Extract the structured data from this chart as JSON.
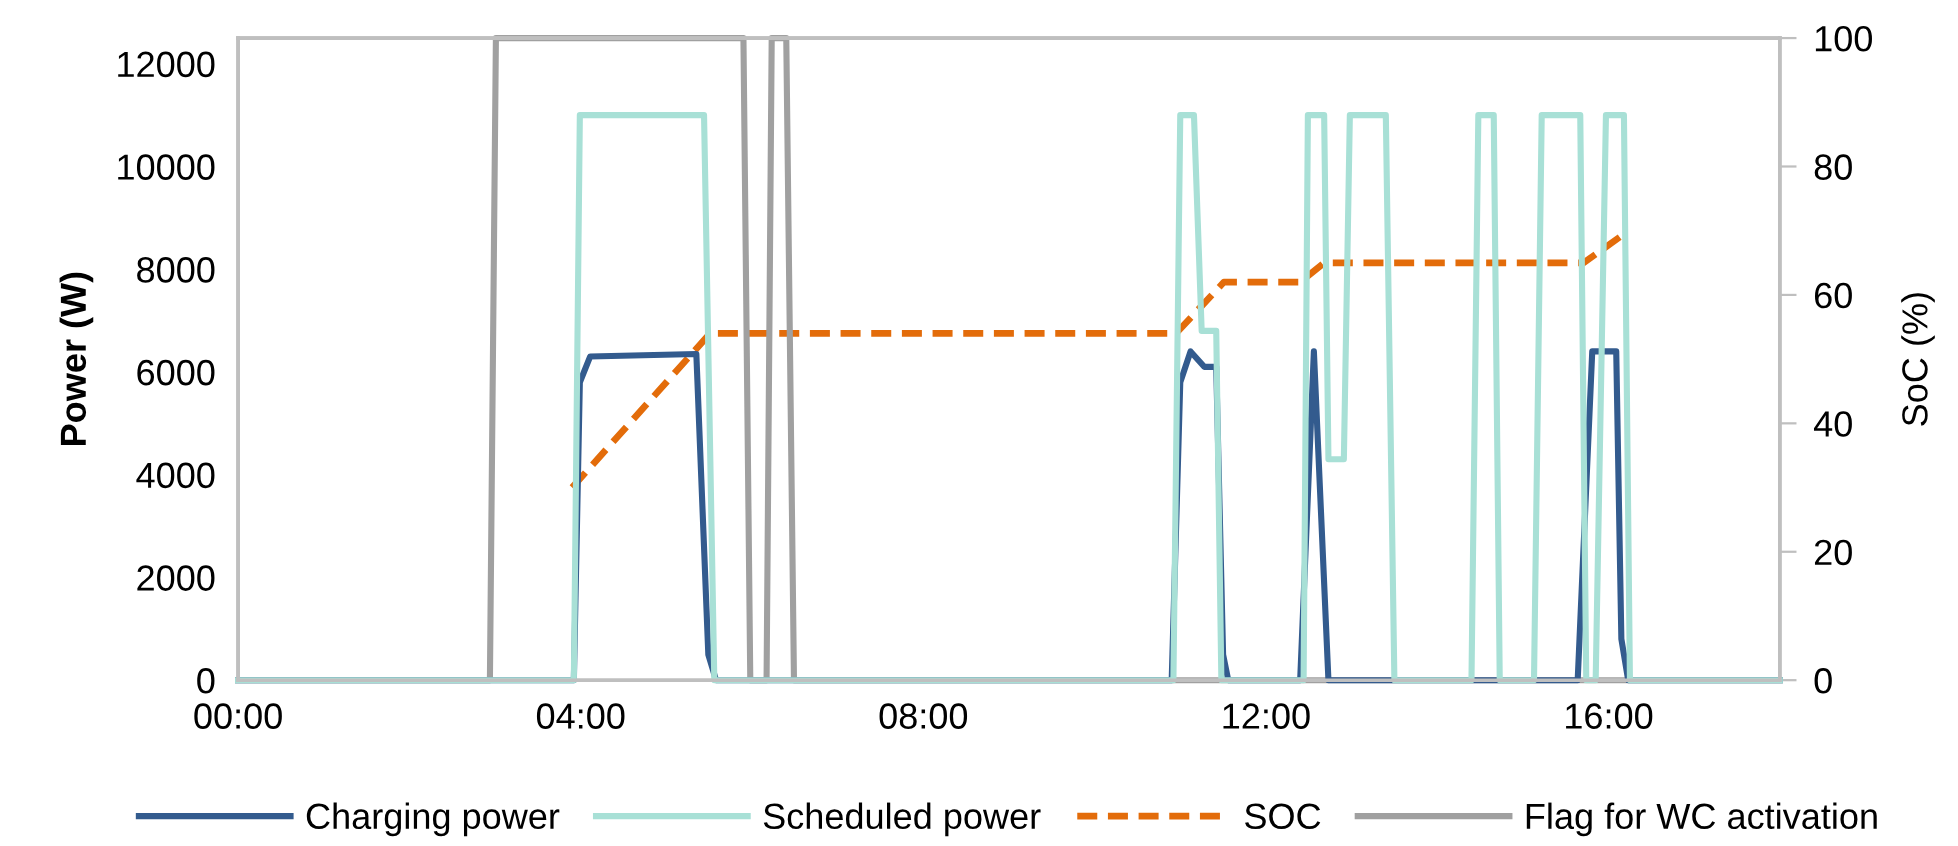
{
  "chart_data": {
    "type": "line",
    "ylabel": "Power (W)",
    "y2label": "SoC (%)",
    "xlim": [
      0,
      18
    ],
    "xticks": [
      {
        "value": 0,
        "label": "00:00"
      },
      {
        "value": 4,
        "label": "04:00"
      },
      {
        "value": 8,
        "label": "08:00"
      },
      {
        "value": 12,
        "label": "12:00"
      },
      {
        "value": 16,
        "label": "16:00"
      }
    ],
    "ylim": [
      0,
      12500
    ],
    "yticks": [
      0,
      2000,
      4000,
      6000,
      8000,
      10000,
      12000
    ],
    "y2lim": [
      0,
      100
    ],
    "y2ticks": [
      0,
      20,
      40,
      60,
      80,
      100
    ],
    "grid": false,
    "legend": "bottom",
    "marker": "none",
    "series": [
      {
        "name": "Charging power",
        "color": "#335b8e",
        "line_style": "solid",
        "x": [
          0,
          3.92,
          3.99,
          4.11,
          5.35,
          5.49,
          5.58,
          10.9,
          11.0,
          11.12,
          11.28,
          11.42,
          11.5,
          11.56,
          12.4,
          12.56,
          12.73,
          15.64,
          15.81,
          16.09,
          16.15,
          16.23,
          18
        ],
        "values": [
          0,
          0,
          5800,
          6300,
          6350,
          500,
          0,
          0,
          5800,
          6400,
          6100,
          6100,
          500,
          0,
          0,
          6400,
          0,
          0,
          6400,
          6400,
          800,
          0,
          0
        ]
      },
      {
        "name": "Scheduled power",
        "color": "#a8e0d6",
        "line_style": "solid",
        "x": [
          0,
          3.92,
          3.99,
          5.44,
          5.56,
          10.92,
          11.0,
          11.16,
          11.25,
          11.42,
          11.48,
          12.44,
          12.49,
          12.68,
          12.73,
          12.91,
          12.98,
          13.4,
          13.5,
          14.4,
          14.48,
          14.66,
          14.73,
          15.13,
          15.22,
          15.67,
          15.74,
          15.85,
          15.97,
          16.18,
          16.25,
          18
        ],
        "values": [
          0,
          0,
          11000,
          11000,
          0,
          0,
          11000,
          11000,
          6800,
          6800,
          0,
          0,
          11000,
          11000,
          4300,
          4300,
          11000,
          11000,
          0,
          0,
          11000,
          11000,
          0,
          0,
          11000,
          11000,
          0,
          0,
          11000,
          11000,
          0,
          0
        ]
      },
      {
        "name": "SOC",
        "color": "#e36c0a",
        "line_style": "dashed",
        "axis": "y2",
        "x": [
          3.9,
          5.51,
          10.95,
          11.51,
          12.4,
          12.68,
          15.71,
          16.13
        ],
        "values": [
          30,
          54,
          54,
          62,
          62,
          65,
          65,
          69
        ]
      },
      {
        "name": "Flag for WC activation",
        "color": "#a0a0a0",
        "line_style": "solid",
        "axis": "y2",
        "x": [
          0,
          2.94,
          3.01,
          5.9,
          5.98,
          6.17,
          6.23,
          6.4,
          6.49,
          18
        ],
        "values": [
          0,
          0,
          100,
          100,
          0,
          0,
          100,
          100,
          0,
          0
        ]
      }
    ]
  }
}
